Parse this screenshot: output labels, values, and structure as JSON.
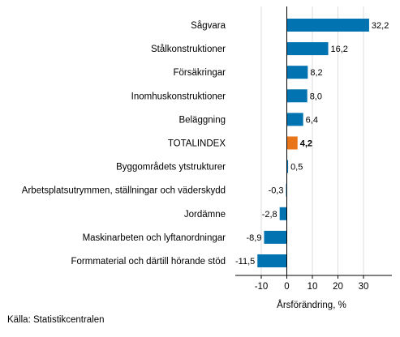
{
  "chart_data": {
    "type": "bar",
    "orientation": "horizontal",
    "categories": [
      "Sågvara",
      "Stålkonstruktioner",
      "Försäkringar",
      "Inomhuskonstruktioner",
      "Beläggning",
      "TOTALINDEX",
      "Byggområdets ytstrukturer",
      "Arbetsplatsutrymmen, ställningar och väderskydd",
      "Jordämne",
      "Maskinarbeten och lyftanordningar",
      "Formmaterial och därtill hörande stöd"
    ],
    "values": [
      32.2,
      16.2,
      8.2,
      8.0,
      6.4,
      4.2,
      0.5,
      -0.3,
      -2.8,
      -8.9,
      -11.5
    ],
    "value_labels": [
      "32,2",
      "16,2",
      "8,2",
      "8,0",
      "6,4",
      "4,2",
      "0,5",
      "-0,3",
      "-2,8",
      "-8,9",
      "-11,5"
    ],
    "highlight_category": "TOTALINDEX",
    "colors": {
      "default": "#0073b0",
      "highlight": "#e8751a",
      "zero_line": "#000000",
      "grid": "#dddddd"
    },
    "xlim": [
      -20,
      40
    ],
    "xticks": [
      -10,
      0,
      10,
      20,
      30
    ],
    "xtick_labels": [
      "-10",
      "0",
      "10",
      "20",
      "30"
    ],
    "xlabel": "Årsförändring, %",
    "grid": true
  },
  "source": "Källa: Statistikcentralen"
}
